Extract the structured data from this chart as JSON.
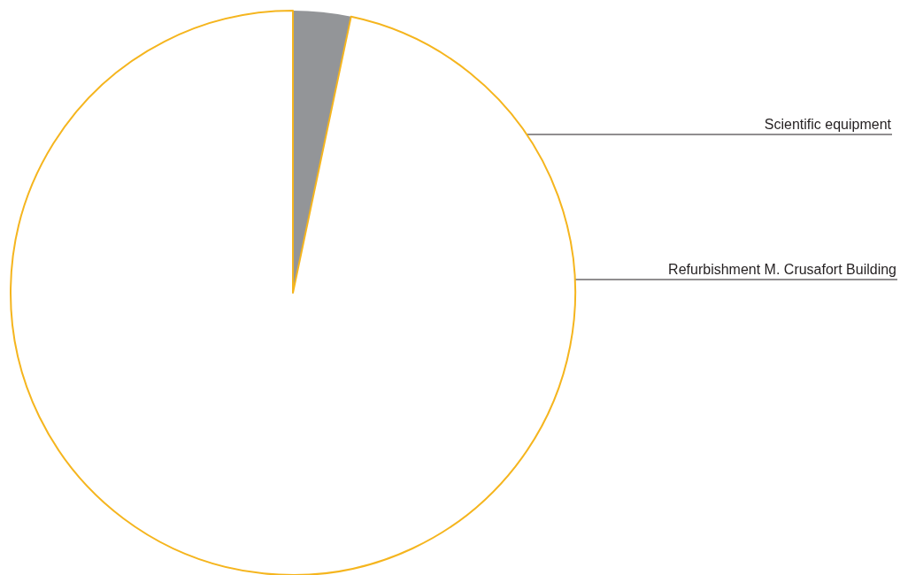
{
  "chart_data": {
    "type": "pie",
    "categories": [
      "Scientific equipment",
      "Refurbishment M. Crusafort Building"
    ],
    "values": [
      3.3,
      96.7
    ],
    "colors": [
      "#939598",
      "#ffffff"
    ]
  }
}
